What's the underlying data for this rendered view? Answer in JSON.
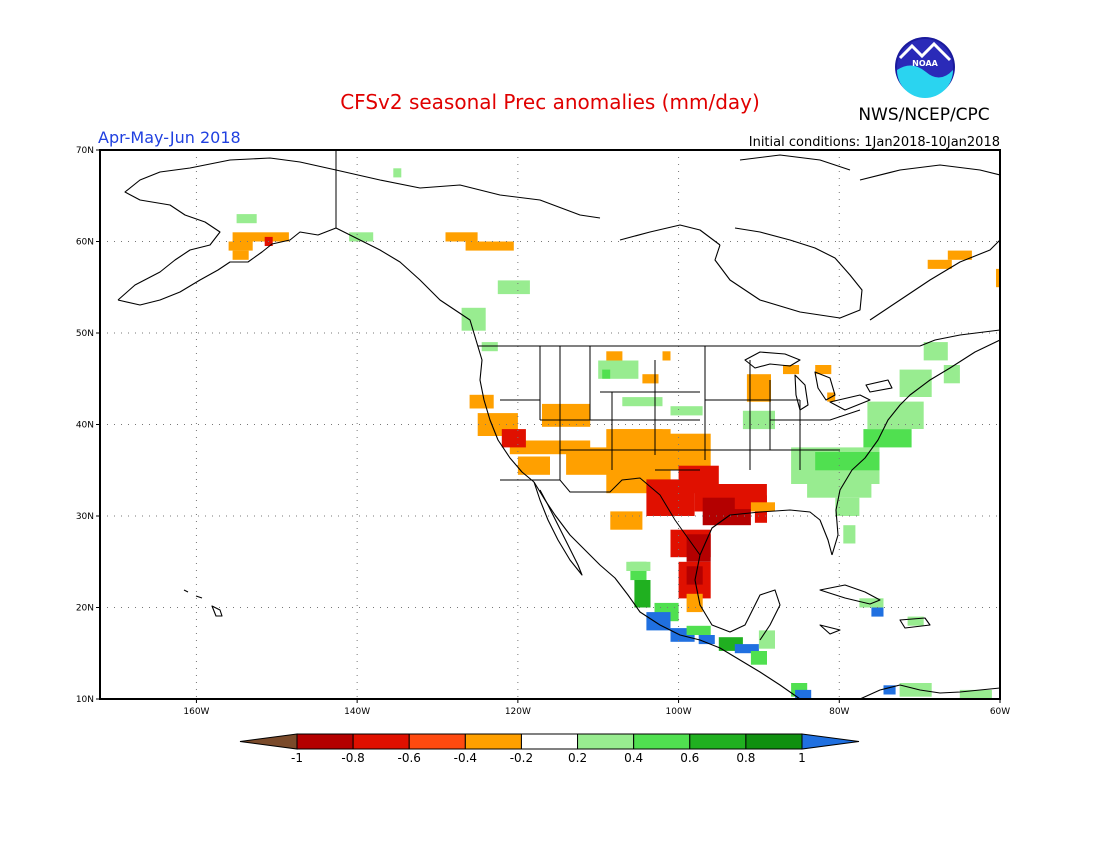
{
  "title": "CFSv2 seasonal Prec anomalies (mm/day)",
  "season": "Apr-May-Jun 2018",
  "initial_conditions": "Initial conditions: 1Jan2018-10Jan2018",
  "agency": "NWS/NCEP/CPC",
  "logo_text": "NOAA",
  "map": {
    "lon_range": [
      -172,
      -60
    ],
    "lat_range": [
      10,
      70
    ],
    "lon_ticks": [
      {
        "lon": -160,
        "label": "160W"
      },
      {
        "lon": -140,
        "label": "140W"
      },
      {
        "lon": -120,
        "label": "120W"
      },
      {
        "lon": -100,
        "label": "100W"
      },
      {
        "lon": -80,
        "label": "80W"
      },
      {
        "lon": -60,
        "label": "60W"
      }
    ],
    "lat_ticks": [
      {
        "lat": 70,
        "label": "70N"
      },
      {
        "lat": 60,
        "label": "60N"
      },
      {
        "lat": 50,
        "label": "50N"
      },
      {
        "lat": 40,
        "label": "40N"
      },
      {
        "lat": 30,
        "label": "30N"
      },
      {
        "lat": 20,
        "label": "20N"
      },
      {
        "lat": 10,
        "label": "10N"
      }
    ]
  },
  "colorbar": {
    "levels": [
      "-1",
      "-0.8",
      "-0.6",
      "-0.4",
      "-0.2",
      "0.2",
      "0.4",
      "0.6",
      "0.8",
      "1"
    ],
    "colors": [
      "#7a4a2a",
      "#b40000",
      "#e01000",
      "#ff4a10",
      "#ffa000",
      "#ffffff",
      "#98ec90",
      "#50e050",
      "#20b020",
      "#109010",
      "#2070e0"
    ]
  },
  "anomaly_regions": [
    {
      "category": "wet-light",
      "lon": -135.5,
      "lat": 67.5,
      "w": 1,
      "h": 1
    },
    {
      "category": "wet-light",
      "lon": -155,
      "lat": 62.5,
      "w": 2.5,
      "h": 1
    },
    {
      "category": "wet-light",
      "lon": -141,
      "lat": 60.5,
      "w": 3,
      "h": 1
    },
    {
      "category": "dry-light",
      "lon": -155.5,
      "lat": 60.5,
      "w": 7,
      "h": 1
    },
    {
      "category": "dry-light",
      "lon": -156,
      "lat": 59.5,
      "w": 3,
      "h": 1
    },
    {
      "category": "dry-light",
      "lon": -155.5,
      "lat": 58.5,
      "w": 2,
      "h": 1
    },
    {
      "category": "dry-medium",
      "lon": -151.5,
      "lat": 60,
      "w": 1,
      "h": 1
    },
    {
      "category": "dry-light",
      "lon": -129,
      "lat": 60.5,
      "w": 4,
      "h": 1
    },
    {
      "category": "dry-light",
      "lon": -126.5,
      "lat": 59.5,
      "w": 6,
      "h": 1
    },
    {
      "category": "wet-light",
      "lon": -122.5,
      "lat": 55,
      "w": 4,
      "h": 1.5
    },
    {
      "category": "wet-light",
      "lon": -127,
      "lat": 51.5,
      "w": 3,
      "h": 2.5
    },
    {
      "category": "wet-light",
      "lon": -124.5,
      "lat": 48.5,
      "w": 2,
      "h": 1
    },
    {
      "category": "dry-light",
      "lon": -126,
      "lat": 42.5,
      "w": 3,
      "h": 1.5
    },
    {
      "category": "dry-light",
      "lon": -125,
      "lat": 40,
      "w": 5,
      "h": 2.5
    },
    {
      "category": "dry-light",
      "lon": -121,
      "lat": 37.5,
      "w": 10,
      "h": 1.5
    },
    {
      "category": "dry-light",
      "lon": -117,
      "lat": 41,
      "w": 6,
      "h": 2.5
    },
    {
      "category": "dry-medium",
      "lon": -122,
      "lat": 38.5,
      "w": 3,
      "h": 2
    },
    {
      "category": "dry-light",
      "lon": -120,
      "lat": 35.5,
      "w": 4,
      "h": 2
    },
    {
      "category": "dry-light",
      "lon": -114,
      "lat": 36,
      "w": 11,
      "h": 3
    },
    {
      "category": "dry-light",
      "lon": -108,
      "lat": 38.5,
      "w": 6,
      "h": 2
    },
    {
      "category": "wet-light",
      "lon": -110,
      "lat": 46,
      "w": 5,
      "h": 2
    },
    {
      "category": "wet-medium",
      "lon": -109.5,
      "lat": 45.5,
      "w": 1,
      "h": 1
    },
    {
      "category": "wet-light",
      "lon": -107,
      "lat": 42.5,
      "w": 5,
      "h": 1
    },
    {
      "category": "dry-light",
      "lon": -109,
      "lat": 47.5,
      "w": 2,
      "h": 1
    },
    {
      "category": "dry-light",
      "lon": -104.5,
      "lat": 45,
      "w": 2,
      "h": 1
    },
    {
      "category": "dry-light",
      "lon": -102,
      "lat": 47.5,
      "w": 1,
      "h": 1
    },
    {
      "category": "wet-light",
      "lon": -101,
      "lat": 41.5,
      "w": 4,
      "h": 1
    },
    {
      "category": "dry-light",
      "lon": -109,
      "lat": 36,
      "w": 8,
      "h": 7
    },
    {
      "category": "dry-light",
      "lon": -101,
      "lat": 37,
      "w": 5,
      "h": 4
    },
    {
      "category": "dry-medium",
      "lon": -104,
      "lat": 32,
      "w": 6,
      "h": 4
    },
    {
      "category": "dry-medium",
      "lon": -100,
      "lat": 34,
      "w": 5,
      "h": 3
    },
    {
      "category": "dry-light",
      "lon": -108.5,
      "lat": 29.5,
      "w": 4,
      "h": 2
    },
    {
      "category": "dry-medium",
      "lon": -98,
      "lat": 32,
      "w": 9,
      "h": 3
    },
    {
      "category": "dry-strong",
      "lon": -97,
      "lat": 30.5,
      "w": 6,
      "h": 3
    },
    {
      "category": "dry-medium",
      "lon": -93,
      "lat": 31.5,
      "w": 4,
      "h": 1.5
    },
    {
      "category": "dry-medium",
      "lon": -90.5,
      "lat": 30,
      "w": 1.5,
      "h": 1.5
    },
    {
      "category": "dry-light",
      "lon": -91,
      "lat": 31,
      "w": 3,
      "h": 1
    },
    {
      "category": "dry-medium",
      "lon": -101,
      "lat": 27,
      "w": 5,
      "h": 3
    },
    {
      "category": "dry-strong",
      "lon": -99,
      "lat": 26.5,
      "w": 3,
      "h": 3
    },
    {
      "category": "dry-medium",
      "lon": -100,
      "lat": 23,
      "w": 4,
      "h": 4
    },
    {
      "category": "dry-strong",
      "lon": -99,
      "lat": 23.5,
      "w": 2,
      "h": 2
    },
    {
      "category": "dry-light",
      "lon": -99,
      "lat": 20.5,
      "w": 2,
      "h": 2
    },
    {
      "category": "wet-medium",
      "lon": -106,
      "lat": 24,
      "w": 2,
      "h": 2
    },
    {
      "category": "wet-strong",
      "lon": -105.5,
      "lat": 21.5,
      "w": 2,
      "h": 3
    },
    {
      "category": "wet-light",
      "lon": -106.5,
      "lat": 24.5,
      "w": 3,
      "h": 1
    },
    {
      "category": "wet-medium",
      "lon": -103,
      "lat": 19.5,
      "w": 3,
      "h": 2
    },
    {
      "category": "extreme-wet",
      "lon": -104,
      "lat": 18.5,
      "w": 3,
      "h": 2
    },
    {
      "category": "extreme-wet",
      "lon": -101,
      "lat": 17,
      "w": 3,
      "h": 1.5
    },
    {
      "category": "wet-medium",
      "lon": -99,
      "lat": 17.5,
      "w": 3,
      "h": 1
    },
    {
      "category": "extreme-wet",
      "lon": -97.5,
      "lat": 16.5,
      "w": 2,
      "h": 1
    },
    {
      "category": "wet-strong",
      "lon": -95,
      "lat": 16,
      "w": 3,
      "h": 1.5
    },
    {
      "category": "extreme-wet",
      "lon": -93,
      "lat": 15.5,
      "w": 3,
      "h": 1
    },
    {
      "category": "wet-medium",
      "lon": -91,
      "lat": 14.5,
      "w": 2,
      "h": 1.5
    },
    {
      "category": "wet-light",
      "lon": -90,
      "lat": 16.5,
      "w": 2,
      "h": 2
    },
    {
      "category": "wet-medium",
      "lon": -86,
      "lat": 11,
      "w": 2,
      "h": 1.5
    },
    {
      "category": "extreme-wet",
      "lon": -85.5,
      "lat": 10.5,
      "w": 2,
      "h": 1
    },
    {
      "category": "wet-light",
      "lon": -72.5,
      "lat": 11,
      "w": 4,
      "h": 1.5
    },
    {
      "category": "extreme-wet",
      "lon": -74.5,
      "lat": 11,
      "w": 1.5,
      "h": 1
    },
    {
      "category": "wet-light",
      "lon": -65,
      "lat": 10.5,
      "w": 4,
      "h": 1
    },
    {
      "category": "extreme-wet",
      "lon": -76,
      "lat": 19.5,
      "w": 1.5,
      "h": 1
    },
    {
      "category": "wet-light",
      "lon": -77.5,
      "lat": 20.5,
      "w": 3,
      "h": 1
    },
    {
      "category": "wet-light",
      "lon": -71.5,
      "lat": 18.5,
      "w": 2,
      "h": 1
    },
    {
      "category": "dry-light",
      "lon": -91.5,
      "lat": 44,
      "w": 3,
      "h": 3
    },
    {
      "category": "dry-light",
      "lon": -87,
      "lat": 46,
      "w": 2,
      "h": 1
    },
    {
      "category": "dry-light",
      "lon": -83,
      "lat": 46,
      "w": 2,
      "h": 1
    },
    {
      "category": "dry-light",
      "lon": -81.5,
      "lat": 43,
      "w": 1,
      "h": 1
    },
    {
      "category": "wet-light",
      "lon": -92,
      "lat": 40.5,
      "w": 4,
      "h": 2
    },
    {
      "category": "wet-light",
      "lon": -86,
      "lat": 35.5,
      "w": 11,
      "h": 4
    },
    {
      "category": "wet-light",
      "lon": -84,
      "lat": 33,
      "w": 8,
      "h": 2
    },
    {
      "category": "wet-medium",
      "lon": -83,
      "lat": 36,
      "w": 8,
      "h": 2
    },
    {
      "category": "wet-light",
      "lon": -80.5,
      "lat": 31,
      "w": 3,
      "h": 2
    },
    {
      "category": "wet-light",
      "lon": -79.5,
      "lat": 28,
      "w": 1.5,
      "h": 2
    },
    {
      "category": "wet-medium",
      "lon": -77,
      "lat": 38.5,
      "w": 6,
      "h": 2
    },
    {
      "category": "wet-light",
      "lon": -76.5,
      "lat": 41,
      "w": 7,
      "h": 3
    },
    {
      "category": "wet-light",
      "lon": -72.5,
      "lat": 44.5,
      "w": 4,
      "h": 3
    },
    {
      "category": "wet-light",
      "lon": -69.5,
      "lat": 48,
      "w": 3,
      "h": 2
    },
    {
      "category": "wet-light",
      "lon": -67,
      "lat": 45.5,
      "w": 2,
      "h": 2
    },
    {
      "category": "dry-light",
      "lon": -69,
      "lat": 57.5,
      "w": 3,
      "h": 1
    },
    {
      "category": "dry-light",
      "lon": -66.5,
      "lat": 58.5,
      "w": 3,
      "h": 1
    },
    {
      "category": "dry-light",
      "lon": -60.5,
      "lat": 56,
      "w": 1.5,
      "h": 2
    }
  ]
}
